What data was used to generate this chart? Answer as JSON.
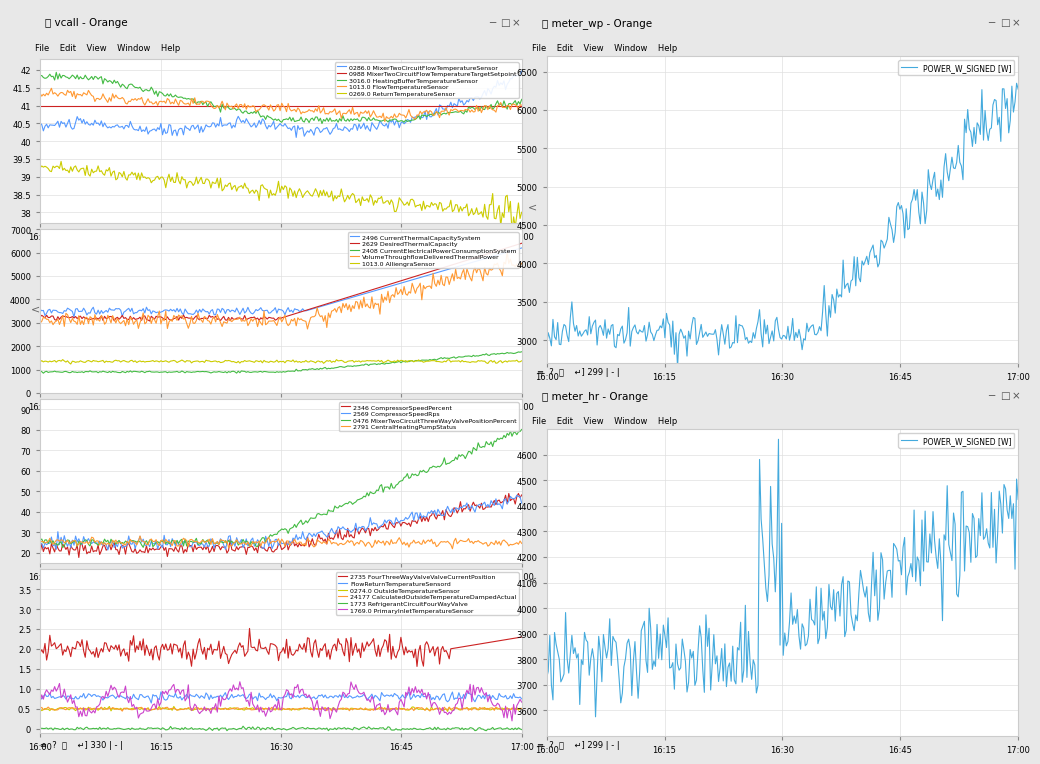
{
  "title_left": "vcall - Orange",
  "title_right_top": "meter_wp - Orange",
  "title_right_bottom": "meter_hr - Orange",
  "time_ticks": [
    "16:00",
    "16:15",
    "16:30",
    "16:45",
    "17:00"
  ],
  "panel1": {
    "ylim": [
      37.5,
      42.5
    ],
    "yticks": [
      38,
      38.5,
      39,
      39.5,
      40,
      40.5,
      41,
      41.5,
      42
    ],
    "legend": [
      "0286.0 MixerTwoCircuitFlowTemperatureSensor",
      "0988 MixerTwoCircuitFlowTemperatureTargetSetpoint",
      "3016.0 HeatingBufferTemperatureSensor",
      "1013.0 FlowTemperatureSensor",
      "0269.0 ReturnTemperatureSensor"
    ],
    "colors": [
      "#5599ff",
      "#cc2222",
      "#44bb44",
      "#ff9933",
      "#cccc00"
    ]
  },
  "panel2": {
    "ylim": [
      0,
      7000
    ],
    "yticks": [
      0,
      1000,
      2000,
      3000,
      4000,
      5000,
      6000,
      7000
    ],
    "legend": [
      "2496 CurrentThermalCapacitySystem",
      "2629 DesiredThermalCapacity",
      "2408 CurrentElectricalPowerConsumptionSystem",
      "VolumeThroughflowDeliveredThermalPower",
      "1013.0 AlliengraSensor"
    ],
    "colors": [
      "#5599ff",
      "#cc2222",
      "#44bb44",
      "#ff9933",
      "#cccc00"
    ]
  },
  "panel3": {
    "ylim": [
      15,
      95
    ],
    "yticks": [
      20,
      30,
      40,
      50,
      60,
      70,
      80,
      90
    ],
    "legend": [
      "2346 CompressorSpeedPercent",
      "2569 CompressorSpeedRps",
      "0476 MixerTwoCircuitThreeWayValvePositionPercent",
      "2791 CentralHeatingPumpStatus"
    ],
    "colors": [
      "#cc2222",
      "#5599ff",
      "#44bb44",
      "#ff9933"
    ]
  },
  "panel4": {
    "ylim": [
      0,
      4.0
    ],
    "yticks": [
      0,
      0.5,
      1.0,
      1.5,
      2.0,
      2.5,
      3.0,
      3.5
    ],
    "legend": [
      "2735 FourThreeWayValveValveCurrentPosition",
      "FlowReturnTemperatureSensord",
      "0274.0 OutsideTemperatureSensor",
      "24177 CalculatedOutsideTemperatureDampedActual",
      "1773 RefrigerantCircuitFourWayValve",
      "1769.0 PrimaryInletTemperatureSensor"
    ],
    "colors": [
      "#cc2222",
      "#5599ff",
      "#dddd00",
      "#ff9933",
      "#44bb44",
      "#cc44cc"
    ]
  },
  "panel_right_top": {
    "ylim": [
      2700,
      6700
    ],
    "yticks": [
      3000,
      3500,
      4000,
      4500,
      5000,
      5500,
      6000,
      6500
    ],
    "legend": [
      "POWER_W_SIGNED [W]"
    ],
    "color": "#44aadd"
  },
  "panel_right_bottom": {
    "ylim": [
      3500,
      4700
    ],
    "yticks": [
      3600,
      3700,
      3800,
      3900,
      4000,
      4100,
      4200,
      4300,
      4400,
      4500,
      4600
    ],
    "legend": [
      "POWER_W_SIGNED [W]"
    ],
    "color": "#44aadd"
  },
  "bg_color": "#f0f0f0",
  "plot_bg": "#ffffff",
  "window_bg": "#f0f0f0",
  "grid_color": "#dddddd",
  "text_color": "#333333",
  "menubar_color": "#f0f0f0"
}
